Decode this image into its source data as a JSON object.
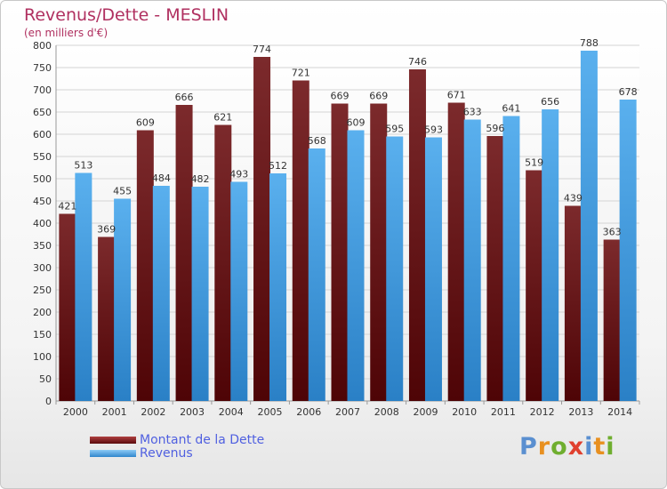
{
  "header": {
    "title": "Revenus/Dette - MESLIN",
    "subtitle": "(en milliers d'€)"
  },
  "colors": {
    "dette": "#7a1f22",
    "revenus": "#4ea6e6",
    "title": "#b03060",
    "legend_text": "#5060e0"
  },
  "legend": {
    "placement": "bottom-left",
    "items": [
      {
        "label": "Montant de la Dette",
        "color": "#7a1f22"
      },
      {
        "label": "Revenus",
        "color": "#4ea6e6"
      }
    ]
  },
  "logo": {
    "text": "Proxiti"
  },
  "chart_data": {
    "type": "bar",
    "title": "Revenus/Dette - MESLIN",
    "subtitle": "(en milliers d'€)",
    "categories": [
      "2000",
      "2001",
      "2002",
      "2003",
      "2004",
      "2005",
      "2006",
      "2007",
      "2008",
      "2009",
      "2010",
      "2011",
      "2012",
      "2013",
      "2014"
    ],
    "series": [
      {
        "name": "Montant de la Dette",
        "values": [
          421,
          369,
          609,
          666,
          621,
          774,
          721,
          669,
          669,
          746,
          671,
          596,
          519,
          439,
          363
        ]
      },
      {
        "name": "Revenus",
        "values": [
          513,
          455,
          484,
          482,
          493,
          512,
          568,
          609,
          595,
          593,
          633,
          641,
          656,
          788,
          678
        ]
      }
    ],
    "ylim": [
      0,
      800
    ],
    "yticks": [
      0,
      50,
      100,
      150,
      200,
      250,
      300,
      350,
      400,
      450,
      500,
      550,
      600,
      650,
      700,
      750,
      800
    ],
    "grid": true,
    "legend_position": "bottom-left"
  }
}
